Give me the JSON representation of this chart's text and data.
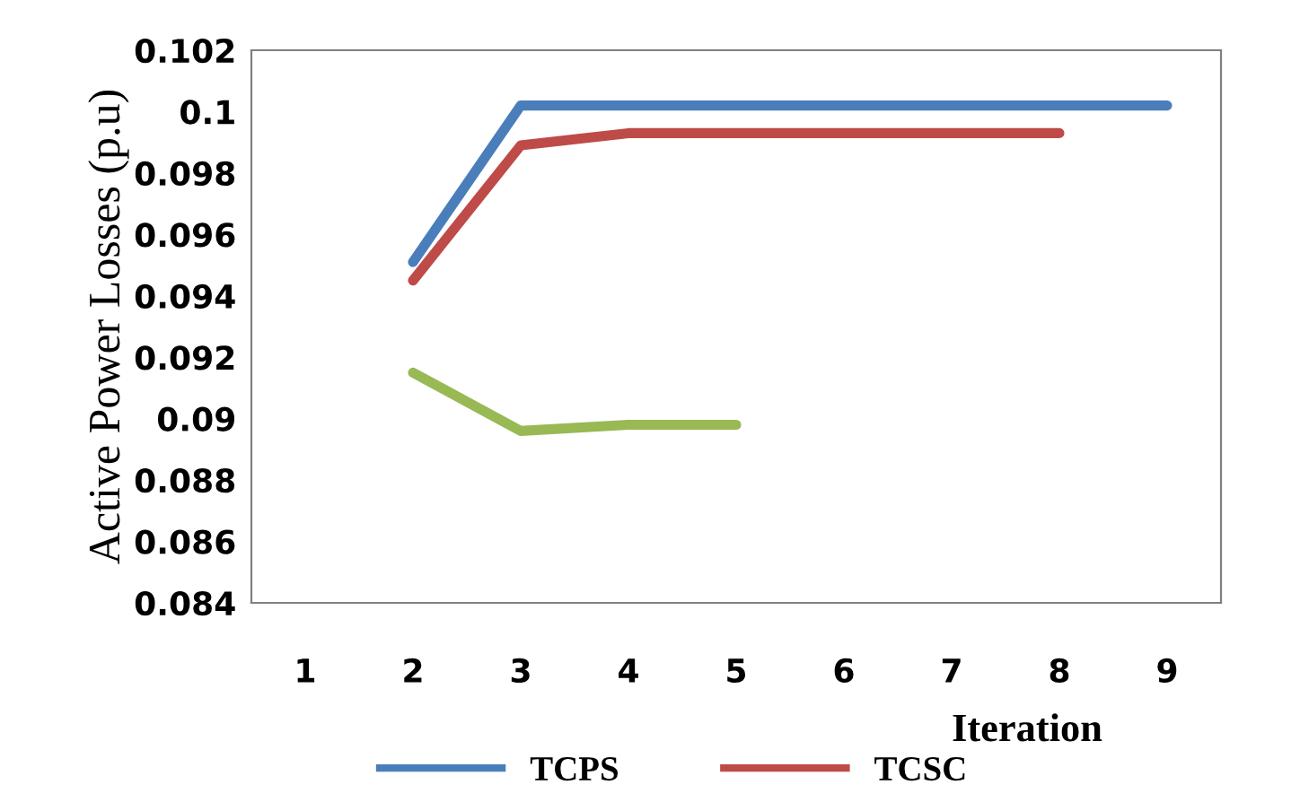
{
  "chart_data": {
    "type": "line",
    "xlabel": "Iteration",
    "ylabel": "Active Power Losses (p.u)",
    "categories": [
      "1",
      "2",
      "3",
      "4",
      "5",
      "6",
      "7",
      "8",
      "9"
    ],
    "series": [
      {
        "name": "TCPS",
        "color": "#4a7ebb",
        "values": [
          null,
          0.0951,
          0.1002,
          0.1002,
          0.1002,
          0.1002,
          0.1002,
          0.1002,
          0.1002
        ]
      },
      {
        "name": "TCSC",
        "color": "#be4b48",
        "values": [
          null,
          0.0945,
          0.0989,
          0.0993,
          0.0993,
          0.0993,
          0.0993,
          0.0993,
          null
        ]
      },
      {
        "color": "#98b954",
        "values": [
          null,
          0.0915,
          0.0896,
          0.0898,
          0.0898,
          null,
          null,
          null,
          null
        ]
      }
    ],
    "ylim": [
      0.084,
      0.102
    ],
    "yticks": [
      {
        "value": 0.084,
        "label": "0.084"
      },
      {
        "value": 0.086,
        "label": "0.086"
      },
      {
        "value": 0.088,
        "label": "0.088"
      },
      {
        "value": 0.09,
        "label": "0.09"
      },
      {
        "value": 0.092,
        "label": "0.092"
      },
      {
        "value": 0.094,
        "label": "0.094"
      },
      {
        "value": 0.096,
        "label": "0.096"
      },
      {
        "value": 0.098,
        "label": "0.098"
      },
      {
        "value": 0.1,
        "label": "0.1"
      },
      {
        "value": 0.102,
        "label": "0.102"
      }
    ],
    "grid": false,
    "legend": "bottom",
    "marker": "none",
    "line_style": "solid"
  }
}
